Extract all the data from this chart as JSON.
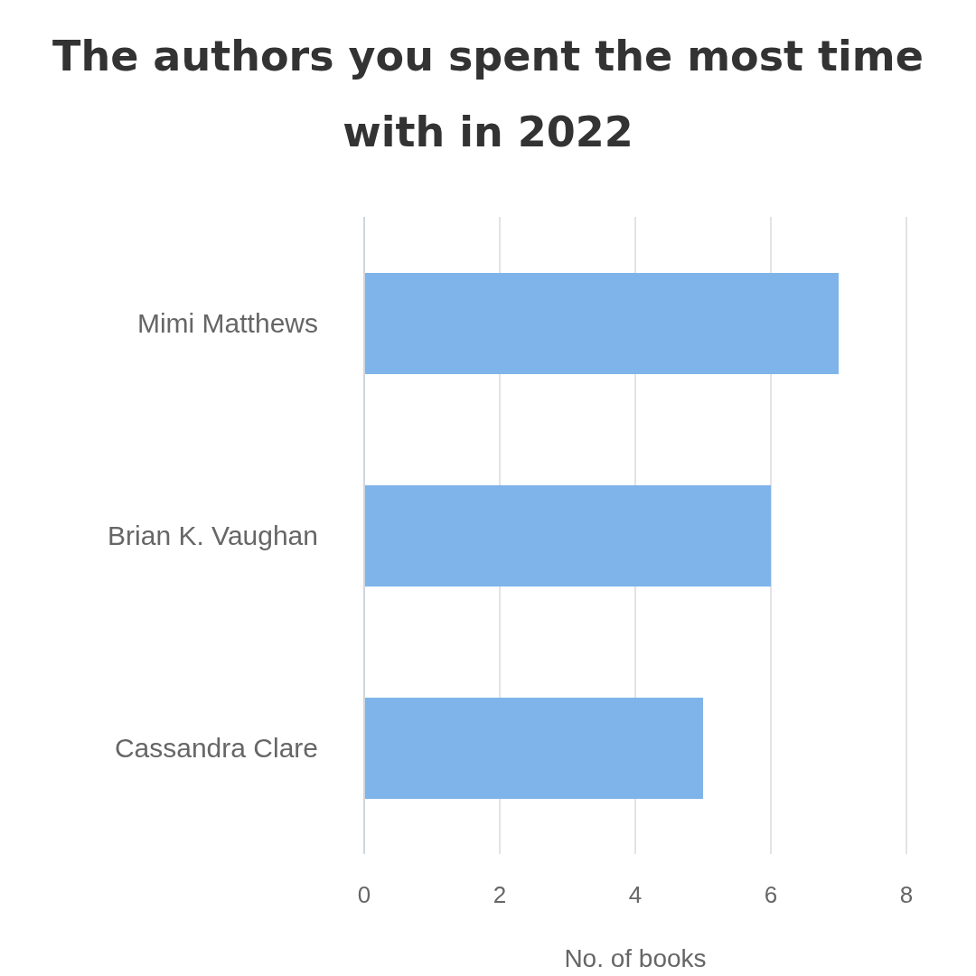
{
  "chart_data": {
    "type": "bar",
    "orientation": "horizontal",
    "title": "The authors you spent the most time with in 2022",
    "categories": [
      "Mimi Matthews",
      "Brian K. Vaughan",
      "Cassandra Clare"
    ],
    "values": [
      7,
      6,
      5
    ],
    "color": "#7fb4ea",
    "xlabel": "No. of books",
    "xlim": [
      0,
      8
    ],
    "xticks": [
      0,
      2,
      4,
      6,
      8
    ],
    "grid": "x"
  }
}
